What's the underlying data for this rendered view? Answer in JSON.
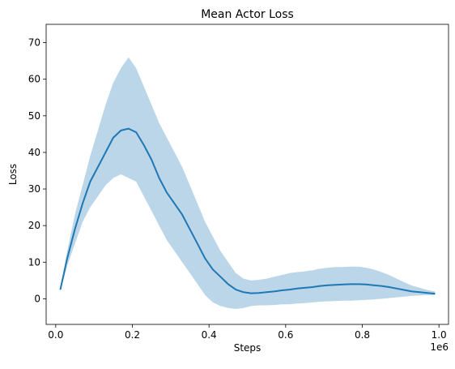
{
  "chart_data": {
    "type": "line",
    "title": "Mean Actor Loss",
    "xlabel": "Steps",
    "ylabel": "Loss",
    "x_offset_label": "1e6",
    "xlim": [
      -0.025,
      1.025
    ],
    "ylim": [
      -7,
      75
    ],
    "xticks": [
      0.0,
      0.2,
      0.4,
      0.6,
      0.8,
      1.0
    ],
    "xtick_labels": [
      "0.0",
      "0.2",
      "0.4",
      "0.6",
      "0.8",
      "1.0"
    ],
    "yticks": [
      0,
      10,
      20,
      30,
      40,
      50,
      60,
      70
    ],
    "ytick_labels": [
      "0",
      "10",
      "20",
      "30",
      "40",
      "50",
      "60",
      "70"
    ],
    "grid": false,
    "colors": {
      "line": "#1f77b4",
      "band": "#1f77b4"
    },
    "series": [
      {
        "x": [
          0.012,
          0.03,
          0.05,
          0.07,
          0.09,
          0.11,
          0.13,
          0.15,
          0.17,
          0.19,
          0.21,
          0.23,
          0.25,
          0.27,
          0.29,
          0.31,
          0.33,
          0.35,
          0.37,
          0.39,
          0.41,
          0.43,
          0.45,
          0.47,
          0.49,
          0.51,
          0.53,
          0.55,
          0.57,
          0.59,
          0.61,
          0.63,
          0.65,
          0.67,
          0.69,
          0.71,
          0.73,
          0.75,
          0.77,
          0.79,
          0.81,
          0.83,
          0.85,
          0.87,
          0.89,
          0.91,
          0.93,
          0.95,
          0.97,
          0.99
        ],
        "y": [
          2.5,
          11,
          19,
          26,
          32,
          36,
          40,
          44,
          46,
          46.5,
          45.5,
          42,
          38,
          33,
          29,
          26,
          23,
          19,
          15,
          11,
          8,
          6,
          4,
          2.5,
          1.8,
          1.5,
          1.6,
          1.8,
          2.0,
          2.3,
          2.5,
          2.8,
          3.0,
          3.2,
          3.5,
          3.7,
          3.8,
          3.9,
          4.0,
          4.0,
          3.9,
          3.7,
          3.5,
          3.2,
          2.8,
          2.4,
          2.0,
          1.8,
          1.6,
          1.4
        ],
        "upper": [
          3.0,
          13,
          23,
          31,
          39,
          46,
          53,
          59,
          63,
          66,
          63,
          58,
          53,
          48,
          44,
          40,
          36,
          31,
          26,
          21,
          17,
          13,
          10,
          7,
          5.5,
          5.0,
          5.2,
          5.5,
          6.0,
          6.5,
          7.0,
          7.3,
          7.5,
          7.8,
          8.2,
          8.5,
          8.7,
          8.7,
          8.8,
          8.8,
          8.5,
          8.0,
          7.3,
          6.5,
          5.5,
          4.5,
          3.6,
          3.0,
          2.4,
          2.0
        ],
        "lower": [
          2.0,
          9,
          15,
          21,
          25,
          28,
          31,
          33,
          34,
          33,
          32,
          28,
          24,
          20,
          16,
          13,
          10,
          7,
          4,
          1,
          -1,
          -2,
          -2.5,
          -2.8,
          -2.5,
          -2.0,
          -1.8,
          -1.8,
          -1.7,
          -1.5,
          -1.5,
          -1.3,
          -1.2,
          -1.0,
          -0.8,
          -0.7,
          -0.6,
          -0.5,
          -0.5,
          -0.4,
          -0.3,
          -0.2,
          0.0,
          0.2,
          0.4,
          0.6,
          0.8,
          0.9,
          1.0,
          1.0
        ]
      }
    ]
  }
}
